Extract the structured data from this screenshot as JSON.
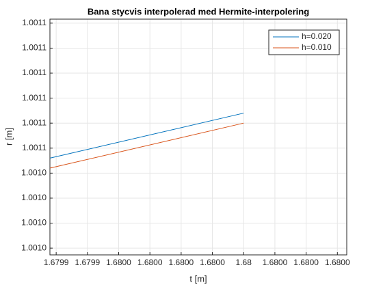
{
  "chart_data": {
    "type": "line",
    "title": "Bana stycvis interpolerad med Hermite-interpolering",
    "xlabel": "t [m]",
    "ylabel": "r [m]",
    "x": [
      1.679938,
      1.68
    ],
    "series": [
      {
        "name": "h=0.020",
        "color": "#0072bd",
        "values": [
          1.0010501,
          1.0010519
        ]
      },
      {
        "name": "h=0.010",
        "color": "#d95319",
        "values": [
          1.0010497,
          1.0010515
        ]
      }
    ],
    "xlim": [
      1.679938,
      1.680033
    ],
    "xticks": [
      {
        "value": 1.67994,
        "label": "1.6799"
      },
      {
        "value": 1.67995,
        "label": "1.6799"
      },
      {
        "value": 1.67996,
        "label": "1.6800"
      },
      {
        "value": 1.67997,
        "label": "1.6800"
      },
      {
        "value": 1.67998,
        "label": "1.6800"
      },
      {
        "value": 1.67999,
        "label": "1.6800"
      },
      1.68,
      {
        "value": 1.68001,
        "label": "1.6800"
      },
      {
        "value": 1.68002,
        "label": "1.6800"
      },
      {
        "value": 1.68003,
        "label": "1.6800"
      }
    ],
    "ylim": [
      1.00104623,
      1.00105566
    ],
    "yticks": [
      {
        "value": 1.0010465,
        "label": "1.0010"
      },
      {
        "value": 1.0010475,
        "label": "1.0010"
      },
      {
        "value": 1.0010485,
        "label": "1.0010"
      },
      {
        "value": 1.0010495,
        "label": "1.0010"
      },
      {
        "value": 1.0010505,
        "label": "1.0011"
      },
      {
        "value": 1.0010515,
        "label": "1.0011"
      },
      {
        "value": 1.0010525,
        "label": "1.0011"
      },
      {
        "value": 1.0010535,
        "label": "1.0011"
      },
      {
        "value": 1.0010545,
        "label": "1.0011"
      },
      {
        "value": 1.0010555,
        "label": "1.0011"
      }
    ],
    "grid": true,
    "legend": "northeast"
  }
}
